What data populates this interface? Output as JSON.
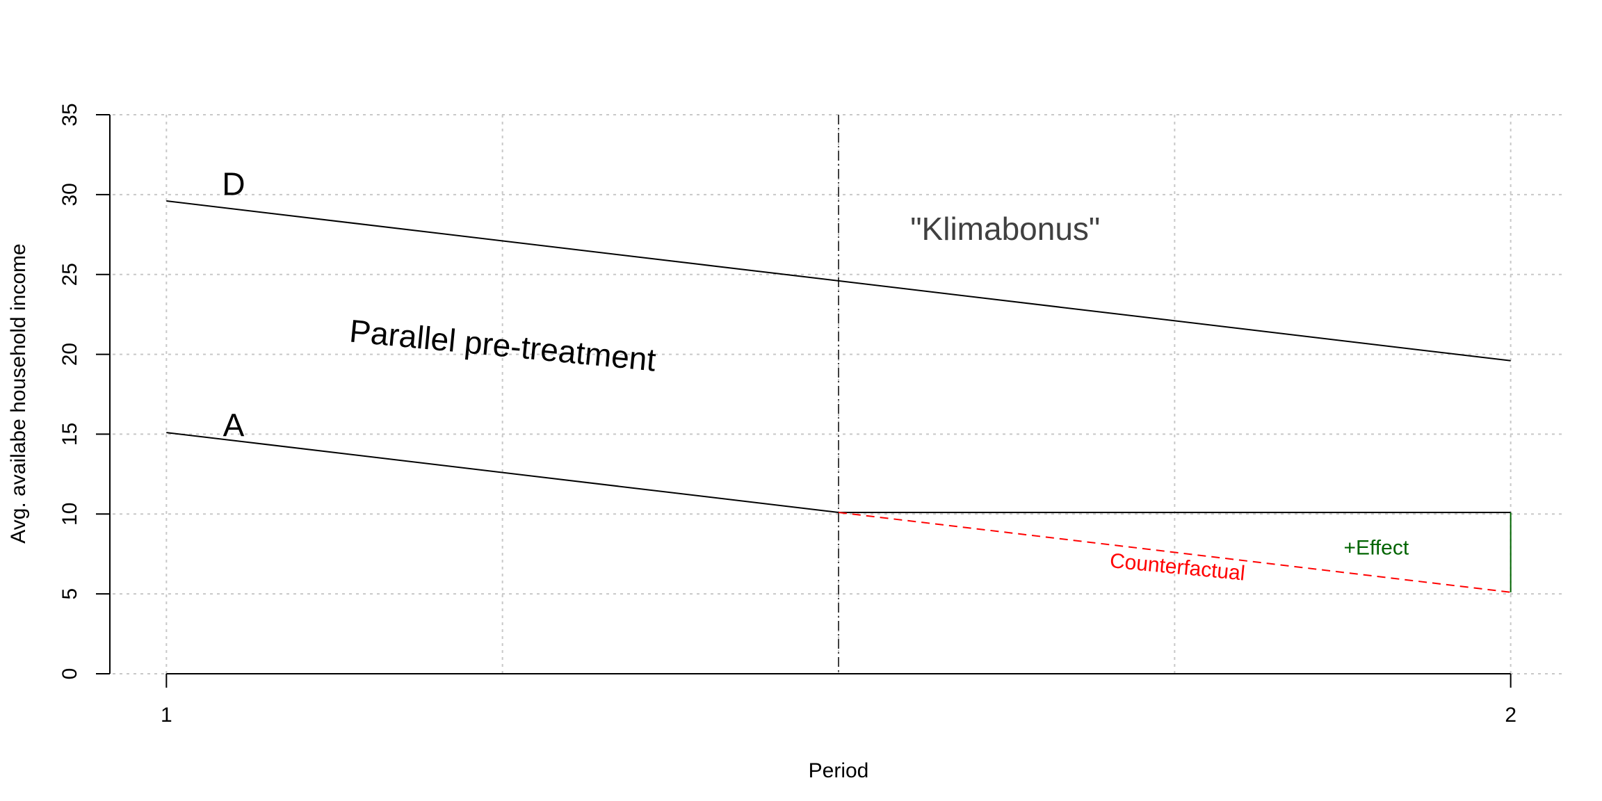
{
  "chart_data": {
    "type": "line",
    "title": "",
    "xlabel": "Period",
    "ylabel": "Avg. availabe household income",
    "xlim": [
      0.96,
      2.04
    ],
    "ylim": [
      0,
      35
    ],
    "x_ticks": [
      1,
      2
    ],
    "y_ticks": [
      0,
      5,
      10,
      15,
      20,
      25,
      30,
      35
    ],
    "grid": true,
    "grid_x": [
      1,
      1.25,
      1.5,
      1.75,
      2
    ],
    "treatment_x": 1.5,
    "series": [
      {
        "name": "D",
        "x": [
          1,
          2
        ],
        "y": [
          29.6,
          19.6
        ],
        "color": "#000000",
        "style": "solid"
      },
      {
        "name": "A",
        "x": [
          1,
          1.5,
          2
        ],
        "y": [
          15.1,
          10.1,
          10.1
        ],
        "color": "#000000",
        "style": "solid"
      },
      {
        "name": "Counterfactual",
        "x": [
          1.5,
          2
        ],
        "y": [
          10.1,
          5.1
        ],
        "color": "#ff0000",
        "style": "dashed"
      }
    ],
    "effect_segment": {
      "x": 2,
      "y": [
        5.1,
        10.1
      ],
      "color": "#006400"
    },
    "annotations": [
      {
        "key": "label_d",
        "text": "D",
        "x": 1.05,
        "y": 30.5,
        "size": 46,
        "color": "#000000",
        "angle": 0
      },
      {
        "key": "label_a",
        "text": "A",
        "x": 1.05,
        "y": 15.4,
        "size": 46,
        "color": "#000000",
        "angle": 0
      },
      {
        "key": "klimabonus",
        "text": "\"Klimabonus\"",
        "x": 1.624,
        "y": 27.7,
        "size": 46,
        "color": "#404040",
        "angle": 0
      },
      {
        "key": "parallel",
        "text": "Parallel pre-treatment",
        "x": 1.25,
        "y": 20.4,
        "size": 46,
        "color": "#000000",
        "angle": 5.5
      },
      {
        "key": "counterfactual",
        "text": "Counterfactual",
        "x": 1.752,
        "y": 6.6,
        "size": 30,
        "color": "#ff0000",
        "angle": 5.5
      },
      {
        "key": "effect",
        "text": "+Effect",
        "x": 1.9,
        "y": 7.8,
        "size": 30,
        "color": "#006400",
        "angle": 0
      }
    ]
  }
}
